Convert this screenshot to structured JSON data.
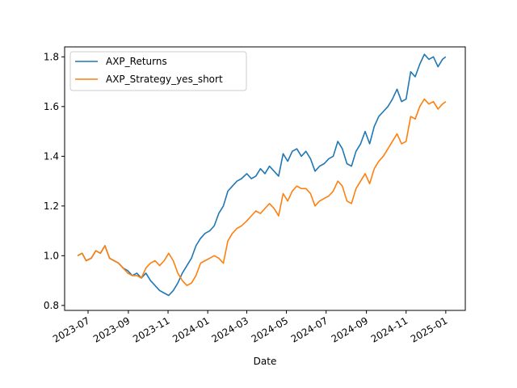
{
  "chart_data": {
    "type": "line",
    "title": "",
    "xlabel": "Date",
    "ylabel": "",
    "x_ticks": [
      "2023-07",
      "2023-09",
      "2023-11",
      "2024-01",
      "2024-03",
      "2024-05",
      "2024-07",
      "2024-09",
      "2024-11",
      "2025-01"
    ],
    "y_ticks": [
      "0.8",
      "1.0",
      "1.2",
      "1.4",
      "1.6",
      "1.8"
    ],
    "xlim": [
      "2023-05-26",
      "2025-01-31"
    ],
    "ylim": [
      0.78,
      1.84
    ],
    "grid": false,
    "legend_position": "upper left",
    "series": [
      {
        "name": "AXP_Returns",
        "color": "#1f77b4",
        "points": [
          [
            "2023-06-15",
            1.0
          ],
          [
            "2023-06-22",
            1.01
          ],
          [
            "2023-06-28",
            0.98
          ],
          [
            "2023-07-06",
            0.99
          ],
          [
            "2023-07-13",
            1.02
          ],
          [
            "2023-07-20",
            1.01
          ],
          [
            "2023-07-27",
            1.04
          ],
          [
            "2023-08-03",
            0.99
          ],
          [
            "2023-08-10",
            0.98
          ],
          [
            "2023-08-17",
            0.97
          ],
          [
            "2023-08-24",
            0.95
          ],
          [
            "2023-08-31",
            0.94
          ],
          [
            "2023-09-07",
            0.92
          ],
          [
            "2023-09-14",
            0.93
          ],
          [
            "2023-09-21",
            0.91
          ],
          [
            "2023-09-28",
            0.93
          ],
          [
            "2023-10-05",
            0.9
          ],
          [
            "2023-10-12",
            0.88
          ],
          [
            "2023-10-19",
            0.86
          ],
          [
            "2023-10-26",
            0.85
          ],
          [
            "2023-11-02",
            0.84
          ],
          [
            "2023-11-09",
            0.86
          ],
          [
            "2023-11-16",
            0.89
          ],
          [
            "2023-11-23",
            0.93
          ],
          [
            "2023-11-30",
            0.96
          ],
          [
            "2023-12-07",
            0.99
          ],
          [
            "2023-12-14",
            1.04
          ],
          [
            "2023-12-21",
            1.07
          ],
          [
            "2023-12-28",
            1.09
          ],
          [
            "2024-01-04",
            1.1
          ],
          [
            "2024-01-11",
            1.12
          ],
          [
            "2024-01-18",
            1.17
          ],
          [
            "2024-01-25",
            1.2
          ],
          [
            "2024-02-01",
            1.26
          ],
          [
            "2024-02-08",
            1.28
          ],
          [
            "2024-02-15",
            1.3
          ],
          [
            "2024-02-22",
            1.31
          ],
          [
            "2024-03-01",
            1.33
          ],
          [
            "2024-03-08",
            1.31
          ],
          [
            "2024-03-15",
            1.32
          ],
          [
            "2024-03-22",
            1.35
          ],
          [
            "2024-03-29",
            1.33
          ],
          [
            "2024-04-05",
            1.36
          ],
          [
            "2024-04-12",
            1.34
          ],
          [
            "2024-04-19",
            1.32
          ],
          [
            "2024-04-26",
            1.41
          ],
          [
            "2024-05-03",
            1.38
          ],
          [
            "2024-05-10",
            1.42
          ],
          [
            "2024-05-17",
            1.43
          ],
          [
            "2024-05-24",
            1.4
          ],
          [
            "2024-05-31",
            1.42
          ],
          [
            "2024-06-07",
            1.39
          ],
          [
            "2024-06-14",
            1.34
          ],
          [
            "2024-06-21",
            1.36
          ],
          [
            "2024-06-28",
            1.37
          ],
          [
            "2024-07-05",
            1.39
          ],
          [
            "2024-07-12",
            1.4
          ],
          [
            "2024-07-19",
            1.46
          ],
          [
            "2024-07-26",
            1.43
          ],
          [
            "2024-08-02",
            1.37
          ],
          [
            "2024-08-09",
            1.36
          ],
          [
            "2024-08-16",
            1.42
          ],
          [
            "2024-08-23",
            1.45
          ],
          [
            "2024-08-30",
            1.5
          ],
          [
            "2024-09-06",
            1.45
          ],
          [
            "2024-09-13",
            1.52
          ],
          [
            "2024-09-20",
            1.56
          ],
          [
            "2024-09-27",
            1.58
          ],
          [
            "2024-10-04",
            1.6
          ],
          [
            "2024-10-11",
            1.63
          ],
          [
            "2024-10-18",
            1.67
          ],
          [
            "2024-10-25",
            1.62
          ],
          [
            "2024-11-01",
            1.63
          ],
          [
            "2024-11-08",
            1.74
          ],
          [
            "2024-11-15",
            1.72
          ],
          [
            "2024-11-22",
            1.77
          ],
          [
            "2024-11-29",
            1.81
          ],
          [
            "2024-12-06",
            1.79
          ],
          [
            "2024-12-13",
            1.8
          ],
          [
            "2024-12-20",
            1.76
          ],
          [
            "2024-12-27",
            1.79
          ],
          [
            "2025-01-01",
            1.8
          ]
        ]
      },
      {
        "name": "AXP_Strategy_yes_short",
        "color": "#ff7f0e",
        "points": [
          [
            "2023-06-15",
            1.0
          ],
          [
            "2023-06-22",
            1.01
          ],
          [
            "2023-06-28",
            0.98
          ],
          [
            "2023-07-06",
            0.99
          ],
          [
            "2023-07-13",
            1.02
          ],
          [
            "2023-07-20",
            1.01
          ],
          [
            "2023-07-27",
            1.04
          ],
          [
            "2023-08-03",
            0.99
          ],
          [
            "2023-08-10",
            0.98
          ],
          [
            "2023-08-17",
            0.97
          ],
          [
            "2023-08-24",
            0.95
          ],
          [
            "2023-08-31",
            0.93
          ],
          [
            "2023-09-07",
            0.92
          ],
          [
            "2023-09-14",
            0.92
          ],
          [
            "2023-09-21",
            0.91
          ],
          [
            "2023-09-28",
            0.95
          ],
          [
            "2023-10-05",
            0.97
          ],
          [
            "2023-10-12",
            0.98
          ],
          [
            "2023-10-19",
            0.96
          ],
          [
            "2023-10-26",
            0.98
          ],
          [
            "2023-11-02",
            1.01
          ],
          [
            "2023-11-09",
            0.98
          ],
          [
            "2023-11-16",
            0.93
          ],
          [
            "2023-11-23",
            0.9
          ],
          [
            "2023-11-30",
            0.88
          ],
          [
            "2023-12-07",
            0.89
          ],
          [
            "2023-12-14",
            0.92
          ],
          [
            "2023-12-21",
            0.97
          ],
          [
            "2023-12-28",
            0.98
          ],
          [
            "2024-01-04",
            0.99
          ],
          [
            "2024-01-11",
            1.0
          ],
          [
            "2024-01-18",
            0.99
          ],
          [
            "2024-01-25",
            0.97
          ],
          [
            "2024-02-01",
            1.06
          ],
          [
            "2024-02-08",
            1.09
          ],
          [
            "2024-02-15",
            1.11
          ],
          [
            "2024-02-22",
            1.12
          ],
          [
            "2024-03-01",
            1.14
          ],
          [
            "2024-03-08",
            1.16
          ],
          [
            "2024-03-15",
            1.18
          ],
          [
            "2024-03-22",
            1.17
          ],
          [
            "2024-03-29",
            1.19
          ],
          [
            "2024-04-05",
            1.21
          ],
          [
            "2024-04-12",
            1.19
          ],
          [
            "2024-04-19",
            1.16
          ],
          [
            "2024-04-26",
            1.25
          ],
          [
            "2024-05-03",
            1.22
          ],
          [
            "2024-05-10",
            1.26
          ],
          [
            "2024-05-17",
            1.28
          ],
          [
            "2024-05-24",
            1.27
          ],
          [
            "2024-05-31",
            1.27
          ],
          [
            "2024-06-07",
            1.25
          ],
          [
            "2024-06-14",
            1.2
          ],
          [
            "2024-06-21",
            1.22
          ],
          [
            "2024-06-28",
            1.23
          ],
          [
            "2024-07-05",
            1.24
          ],
          [
            "2024-07-12",
            1.26
          ],
          [
            "2024-07-19",
            1.3
          ],
          [
            "2024-07-26",
            1.28
          ],
          [
            "2024-08-02",
            1.22
          ],
          [
            "2024-08-09",
            1.21
          ],
          [
            "2024-08-16",
            1.27
          ],
          [
            "2024-08-23",
            1.3
          ],
          [
            "2024-08-30",
            1.33
          ],
          [
            "2024-09-06",
            1.29
          ],
          [
            "2024-09-13",
            1.35
          ],
          [
            "2024-09-20",
            1.38
          ],
          [
            "2024-09-27",
            1.4
          ],
          [
            "2024-10-04",
            1.43
          ],
          [
            "2024-10-11",
            1.46
          ],
          [
            "2024-10-18",
            1.49
          ],
          [
            "2024-10-25",
            1.45
          ],
          [
            "2024-11-01",
            1.46
          ],
          [
            "2024-11-08",
            1.56
          ],
          [
            "2024-11-15",
            1.55
          ],
          [
            "2024-11-22",
            1.6
          ],
          [
            "2024-11-29",
            1.63
          ],
          [
            "2024-12-06",
            1.61
          ],
          [
            "2024-12-13",
            1.62
          ],
          [
            "2024-12-20",
            1.59
          ],
          [
            "2024-12-27",
            1.61
          ],
          [
            "2025-01-01",
            1.62
          ]
        ]
      }
    ]
  }
}
